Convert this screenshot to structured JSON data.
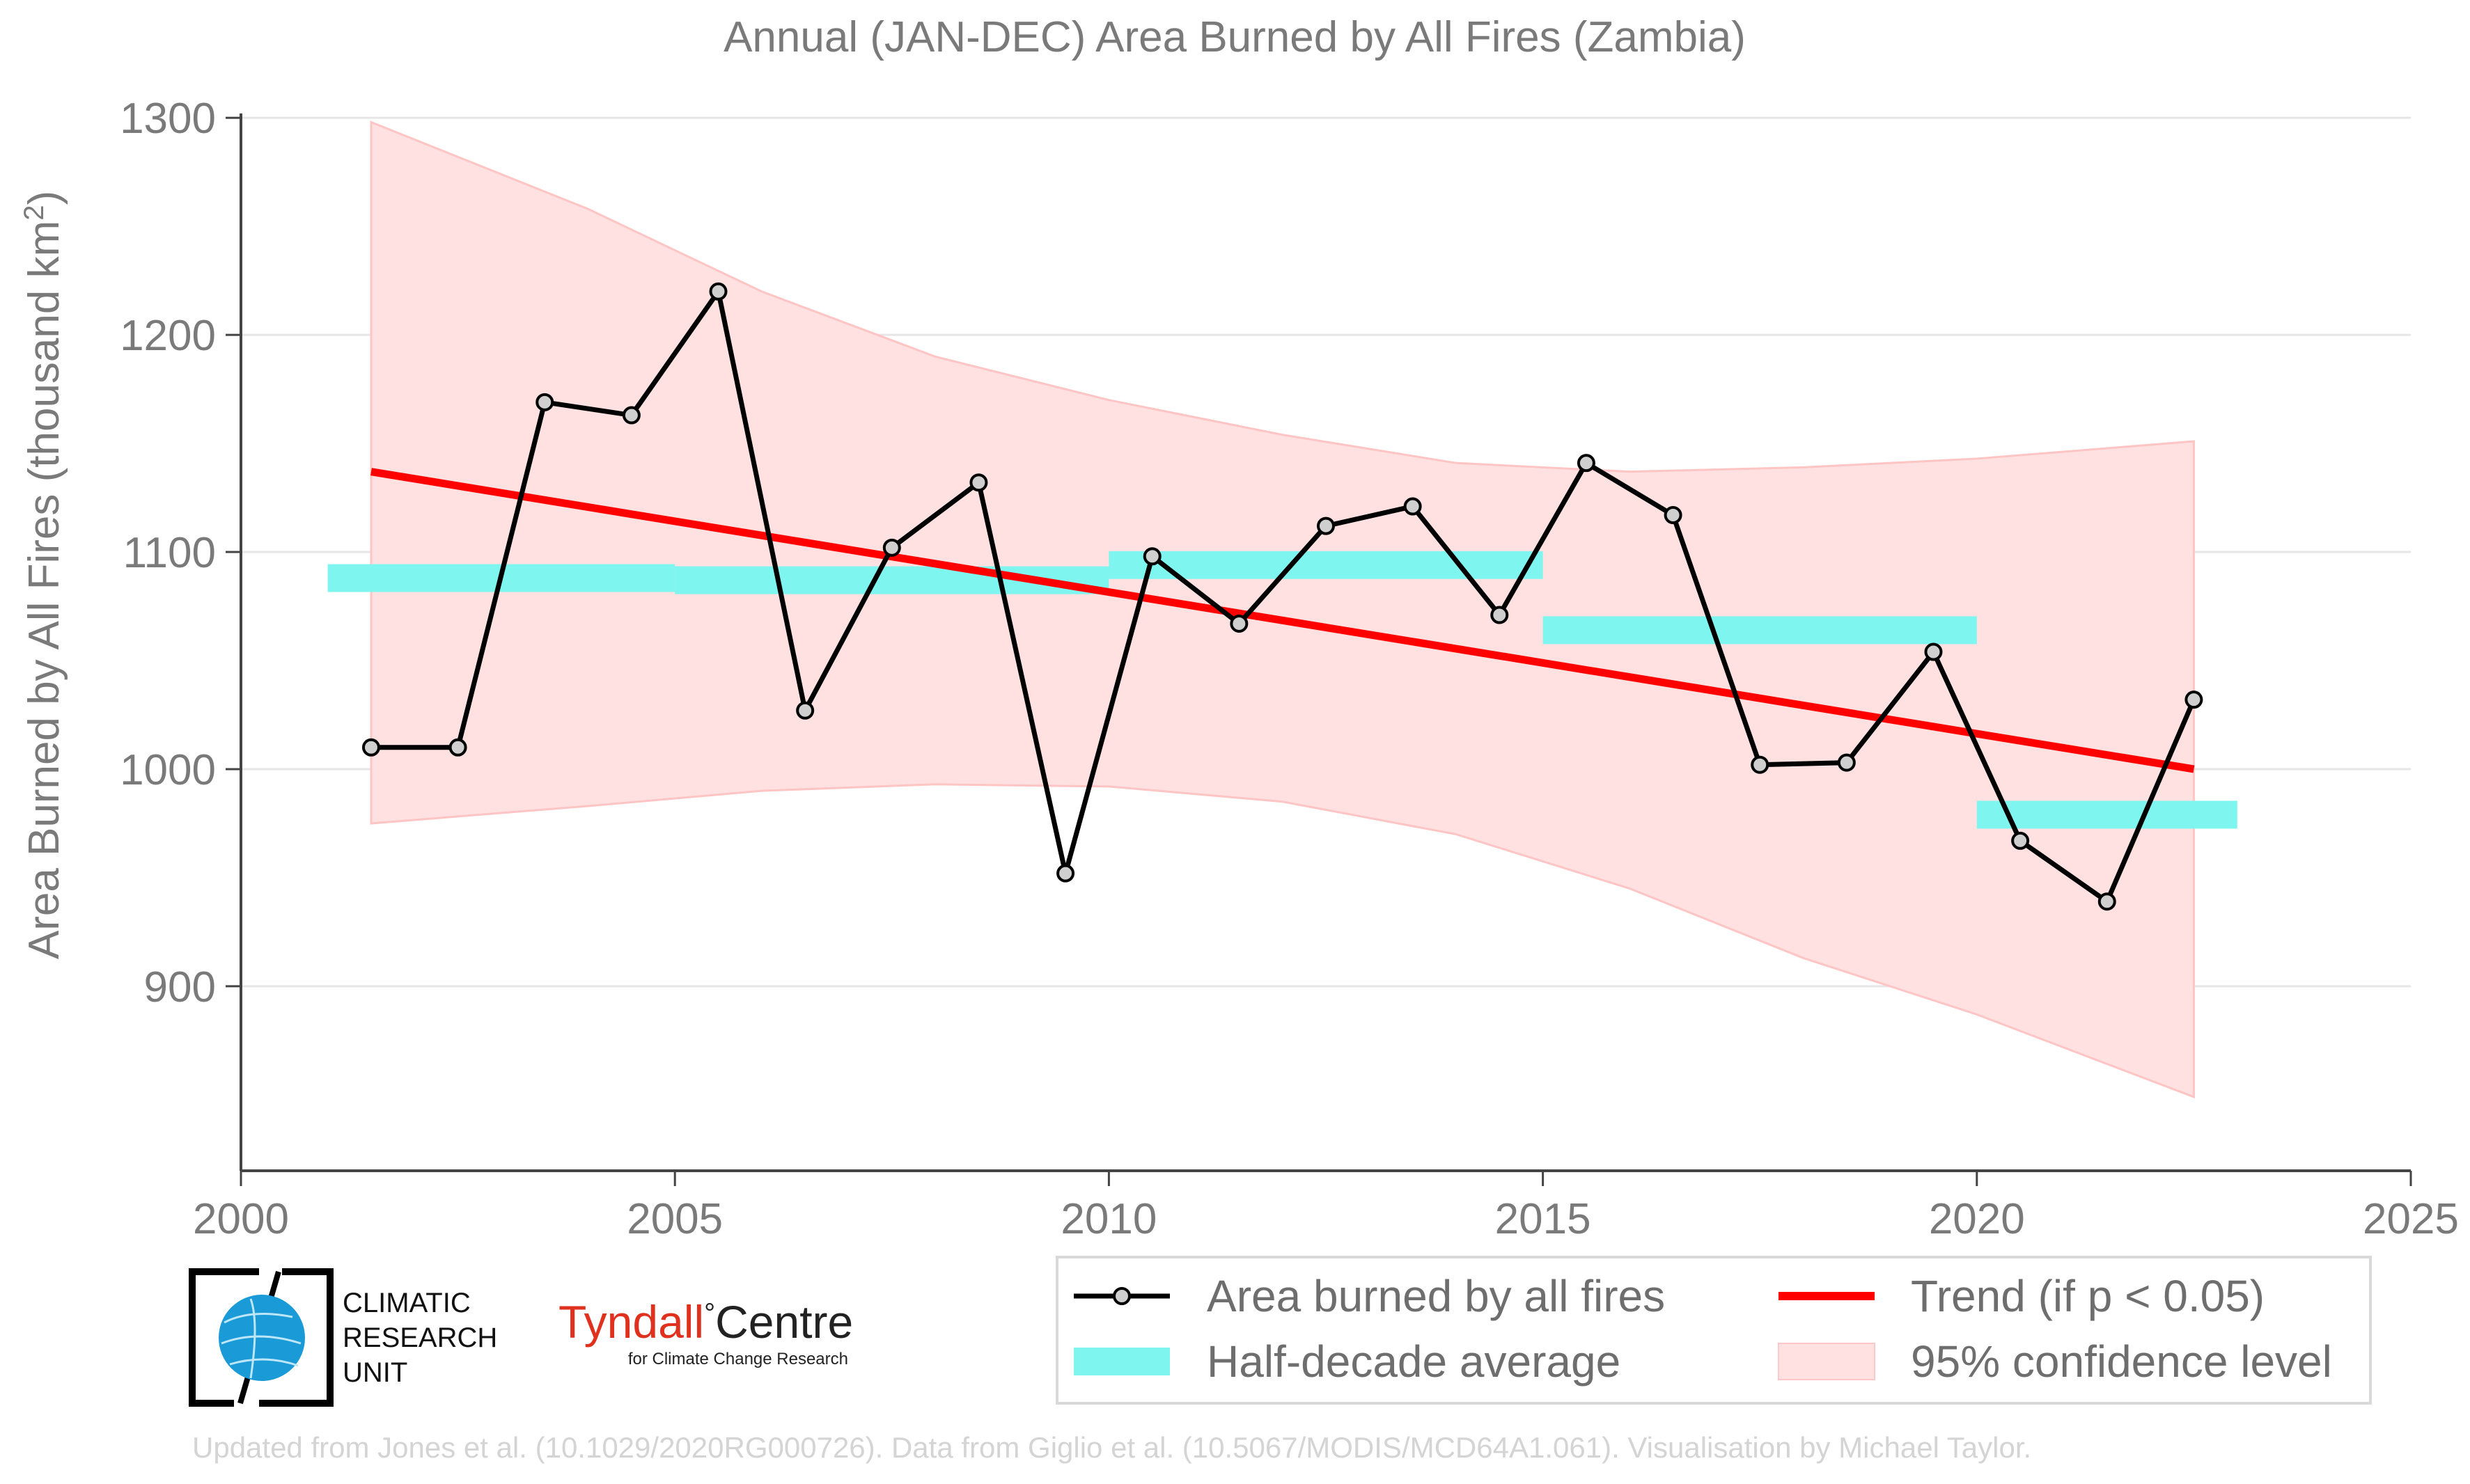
{
  "chart_data": {
    "type": "line",
    "title": "Annual (JAN-DEC) Area Burned by All Fires (Zambia)",
    "ylabel": "Area Burned by All Fires (thousand km",
    "ylabel_sup": "2",
    "ylabel_close": ")",
    "xlim": [
      2000,
      2025
    ],
    "ylim": [
      815,
      1302
    ],
    "xticks": [
      2000,
      2005,
      2010,
      2015,
      2020,
      2025
    ],
    "yticks": [
      900,
      1000,
      1100,
      1200,
      1300
    ],
    "series": [
      {
        "name": "Area burned by all fires",
        "color": "#000000",
        "x": [
          2001.5,
          2002.5,
          2003.5,
          2004.5,
          2005.5,
          2006.5,
          2007.5,
          2008.5,
          2009.5,
          2010.5,
          2011.5,
          2012.5,
          2013.5,
          2014.5,
          2015.5,
          2016.5,
          2017.5,
          2018.5,
          2019.5,
          2020.5,
          2021.5,
          2022.5
        ],
        "values": [
          1010,
          1010,
          1169,
          1163,
          1220,
          1027,
          1102,
          1132,
          952,
          1098,
          1067,
          1112,
          1121,
          1071,
          1141,
          1117,
          1002,
          1003,
          1054,
          967,
          939,
          1032
        ]
      }
    ],
    "half_decade_average": {
      "name": "Half-decade average",
      "color": "#7ff5f0",
      "segments": [
        {
          "x0": 2001.0,
          "x1": 2005.0,
          "value": 1088
        },
        {
          "x0": 2005.0,
          "x1": 2010.0,
          "value": 1087
        },
        {
          "x0": 2010.0,
          "x1": 2015.0,
          "value": 1094
        },
        {
          "x0": 2015.0,
          "x1": 2020.0,
          "value": 1064
        },
        {
          "x0": 2020.0,
          "x1": 2023.0,
          "value": 979
        }
      ]
    },
    "trend": {
      "name": "Trend (if p < 0.05)",
      "color": "#ff0000",
      "x": [
        2001.5,
        2022.5
      ],
      "values": [
        1137,
        1000
      ]
    },
    "confidence": {
      "name": "95% confidence level",
      "color": "#ffe1e1",
      "x": [
        2001.5,
        2004.0,
        2006.0,
        2008.0,
        2010.0,
        2012.0,
        2014.0,
        2016.0,
        2018.0,
        2020.0,
        2022.5
      ],
      "upper": [
        1298,
        1258,
        1220,
        1190,
        1170,
        1154,
        1141,
        1137,
        1139,
        1143,
        1151
      ],
      "lower": [
        975,
        983,
        990,
        993,
        992,
        985,
        970,
        945,
        913,
        887,
        849
      ]
    },
    "grid": "horizontal",
    "legend_position": "bottom-right"
  },
  "logos": {
    "cru_lines": [
      "CLIMATIC",
      "RESEARCH",
      "UNIT"
    ],
    "tyndall_main_1": "Tyndall",
    "tyndall_degree": "°",
    "tyndall_main_2": "Centre",
    "tyndall_sub": "for Climate Change Research"
  },
  "credit": "Updated from Jones et al. (10.1029/2020RG000726). Data from Giglio et al. (10.5067/MODIS/MCD64A1.061). Visualisation by Michael Taylor."
}
